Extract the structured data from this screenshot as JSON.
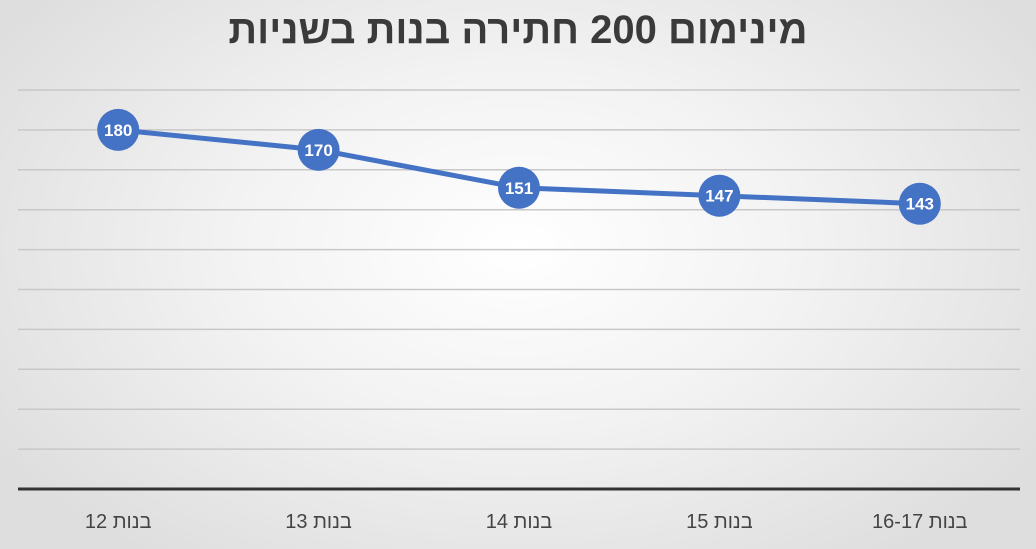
{
  "chart_data": {
    "type": "line",
    "title": "מינימום 200 חתירה בנות בשניות",
    "categories": [
      "בנות 12",
      "בנות 13",
      "בנות 14",
      "בנות 15",
      "בנות 16-17"
    ],
    "series": [
      {
        "values": [
          180,
          170,
          151,
          147,
          143
        ],
        "color": "#4472C4"
      }
    ],
    "ylim": [
      0,
      200
    ],
    "grid": true,
    "legend": "none",
    "data_labels": true,
    "gridline_color": "#c8c8c8",
    "axis_color": "#333333"
  }
}
